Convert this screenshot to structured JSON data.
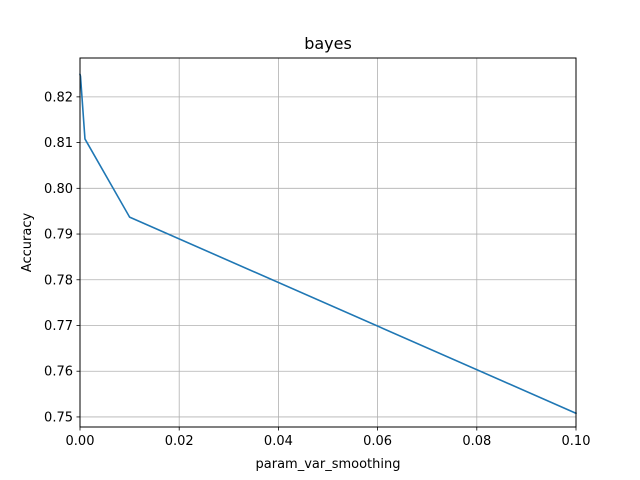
{
  "chart_data": {
    "type": "line",
    "title": "bayes",
    "xlabel": "param_var_smoothing",
    "ylabel": "Accuracy",
    "xlim": [
      0,
      0.1
    ],
    "ylim": [
      0.7478,
      0.8285
    ],
    "xticks": [
      0.0,
      0.02,
      0.04,
      0.06,
      0.08,
      0.1
    ],
    "xtick_labels": [
      "0.00",
      "0.02",
      "0.04",
      "0.06",
      "0.08",
      "0.10"
    ],
    "yticks": [
      0.75,
      0.76,
      0.77,
      0.78,
      0.79,
      0.8,
      0.81,
      0.82
    ],
    "ytick_labels": [
      "0.75",
      "0.76",
      "0.77",
      "0.78",
      "0.79",
      "0.80",
      "0.81",
      "0.82"
    ],
    "grid": true,
    "series": [
      {
        "color": "#1f77b4",
        "x": [
          1e-09,
          1e-08,
          1e-07,
          1e-06,
          1e-05,
          0.0001,
          0.001,
          0.01,
          0.1
        ],
        "y": [
          0.8249,
          0.8249,
          0.8249,
          0.8249,
          0.8249,
          0.8245,
          0.8108,
          0.7937,
          0.7508
        ]
      }
    ]
  }
}
